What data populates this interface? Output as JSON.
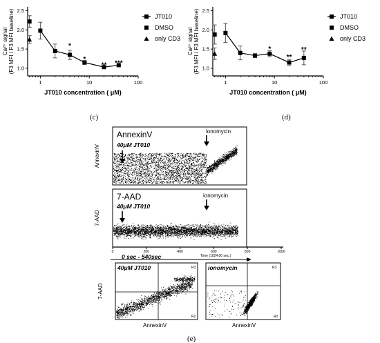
{
  "chart_data": [
    {
      "panel": "(c)",
      "type": "line",
      "ylabel_sup": "Ca²⁺ signal",
      "ylabel": "(F3 MFI / F3 MFI baseline)",
      "xlabel": "JT010 concentration ( μM)",
      "xscale": "log",
      "xticks": [
        "1",
        "10",
        "100"
      ],
      "yticks": [
        "1.0",
        "1.5",
        "2.0",
        "2.5"
      ],
      "ylim": [
        0.8,
        2.6
      ],
      "series": [
        {
          "name": "JT010",
          "marker": "square",
          "x": [
            1,
            2,
            4,
            8,
            20,
            40
          ],
          "y": [
            1.98,
            1.45,
            1.35,
            1.15,
            1.03,
            1.08
          ],
          "err": [
            0.22,
            0.18,
            0.12,
            0.05,
            0.02,
            0.02
          ]
        },
        {
          "name": "DMSO",
          "marker": "square",
          "x": [
            0.6
          ],
          "y": [
            2.22
          ],
          "err": [
            0.15
          ]
        },
        {
          "name": "only CD3",
          "marker": "triangle",
          "x": [
            0.6
          ],
          "y": [
            1.75
          ],
          "err": [
            0.1
          ]
        }
      ],
      "annotations": [
        {
          "x": 4,
          "y": 1.6,
          "text": "*"
        },
        {
          "x": 8,
          "y": 1.25,
          "text": "*"
        },
        {
          "x": 20,
          "y": 1.1,
          "text": "**"
        },
        {
          "x": 40,
          "y": 1.15,
          "text": "***"
        }
      ]
    },
    {
      "panel": "(d)",
      "type": "line",
      "ylabel_sup": "Ca²⁺ signal",
      "ylabel": "(F3 MFI / F3 MFI baseline)",
      "xlabel": "JT010 concentration ( μM)",
      "xscale": "log",
      "xticks": [
        "1",
        "10",
        "100"
      ],
      "yticks": [
        "1.0",
        "1.5",
        "2.0",
        "2.5"
      ],
      "ylim": [
        0.8,
        2.6
      ],
      "series": [
        {
          "name": "JT010",
          "marker": "square",
          "x": [
            1,
            2,
            4,
            8,
            20,
            40
          ],
          "y": [
            1.92,
            1.4,
            1.33,
            1.38,
            1.15,
            1.27
          ],
          "err": [
            0.25,
            0.18,
            0.05,
            0.08,
            0.08,
            0.18
          ]
        },
        {
          "name": "DMSO",
          "marker": "square",
          "x": [
            0.6
          ],
          "y": [
            1.88
          ],
          "err": [
            0.25
          ]
        },
        {
          "name": "only CD3",
          "marker": "triangle",
          "x": [
            0.6
          ],
          "y": [
            1.38
          ],
          "err": [
            0.15
          ]
        }
      ],
      "annotations": [
        {
          "x": 8,
          "y": 1.52,
          "text": "*"
        },
        {
          "x": 20,
          "y": 1.3,
          "text": "**"
        },
        {
          "x": 40,
          "y": 1.5,
          "text": "**"
        }
      ]
    },
    {
      "panel": "(e)",
      "type": "scatter",
      "time_plots": [
        {
          "title": "AnnexinV",
          "ylabel": "AnnexinV",
          "treatment": "40μM JT010",
          "event": "ionomycin"
        },
        {
          "title": "7-AAD",
          "ylabel": "7-AAD",
          "treatment": "40μM JT010",
          "event": "ionomycin"
        }
      ],
      "time_axis": {
        "label": "Time (1024.00 sec.)",
        "ticks": [
          "0",
          "200",
          "400",
          "600",
          "800",
          "1000"
        ]
      },
      "time_range_label": "0 sec - 540sec",
      "dot_plots": [
        {
          "title": "40μM JT010",
          "xlabel": "AnnexinV",
          "ylabel": "7-AAD",
          "gates": [
            "R3",
            "R2"
          ]
        },
        {
          "title": "ionomycin",
          "xlabel": "AnnexinV",
          "gates": [
            "R3",
            "R2"
          ]
        }
      ]
    }
  ]
}
